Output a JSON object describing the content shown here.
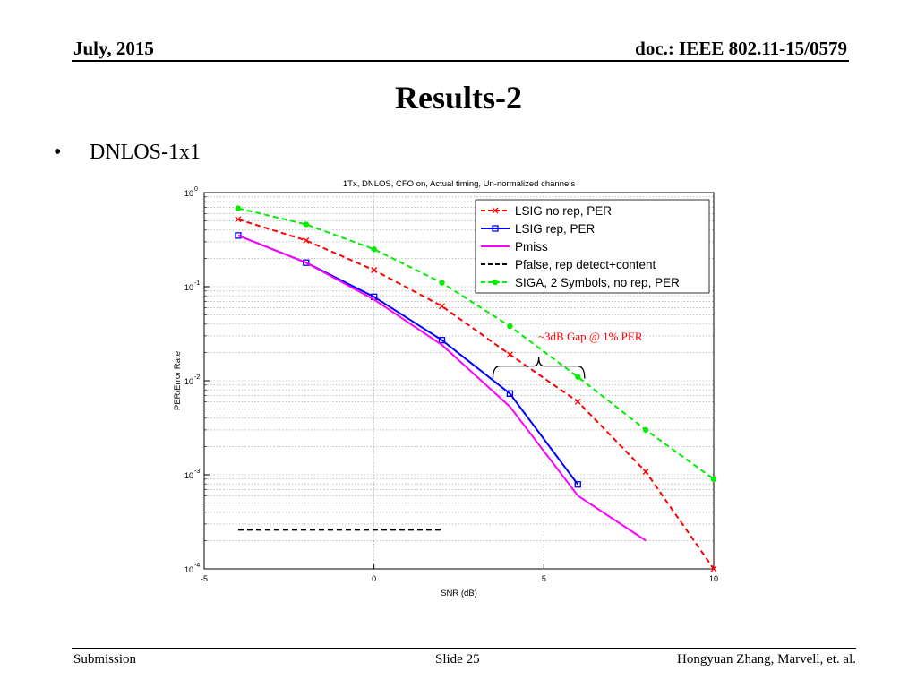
{
  "header": {
    "date": "July, 2015",
    "doc": "doc.: IEEE 802.11-15/0579"
  },
  "slide_title": "Results-2",
  "bullet": {
    "dot": "•",
    "text": "DNLOS-1x1"
  },
  "footer": {
    "left": "Submission",
    "center": "Slide 25",
    "right": "Hongyuan Zhang,  Marvell, et. al."
  },
  "chart_data": {
    "type": "line",
    "title": "1Tx, DNLOS, CFO on, Actual timing, Un-normalized channels",
    "xlabel": "SNR (dB)",
    "ylabel": "PER/Error Rate",
    "xlim": [
      -5,
      10
    ],
    "ylim": [
      0.0001,
      1
    ],
    "yscale": "log",
    "xticks": [
      -5,
      0,
      5,
      10
    ],
    "yticks": [
      {
        "value": 1,
        "label": "10",
        "exp": "0"
      },
      {
        "value": 0.1,
        "label": "10",
        "exp": "-1"
      },
      {
        "value": 0.01,
        "label": "10",
        "exp": "-2"
      },
      {
        "value": 0.001,
        "label": "10",
        "exp": "-3"
      },
      {
        "value": 0.0001,
        "label": "10",
        "exp": "-4"
      }
    ],
    "grid": true,
    "legend_position": "top-right",
    "series": [
      {
        "name": "LSIG no rep, PER",
        "color": "#ff0000",
        "dash": "dashed",
        "marker": "x",
        "x": [
          -4,
          -2,
          0,
          2,
          4,
          6,
          8,
          10
        ],
        "y": [
          0.52,
          0.31,
          0.15,
          0.062,
          0.019,
          0.006,
          0.00108,
          0.0001
        ]
      },
      {
        "name": "LSIG rep, PER",
        "color": "#0000ff",
        "dash": "solid",
        "marker": "square",
        "x": [
          -4,
          -2,
          0,
          2,
          4,
          6
        ],
        "y": [
          0.35,
          0.18,
          0.078,
          0.027,
          0.0073,
          0.00079
        ]
      },
      {
        "name": "Pmiss",
        "color": "#ff00ff",
        "dash": "solid",
        "marker": "none",
        "x": [
          -4,
          -2,
          0,
          2,
          4,
          6,
          8
        ],
        "y": [
          0.35,
          0.18,
          0.073,
          0.024,
          0.0053,
          0.0006,
          0.0002
        ]
      },
      {
        "name": "Pfalse, rep detect+content",
        "color": "#000000",
        "dash": "dashed",
        "marker": "none",
        "x": [
          -4,
          2
        ],
        "y": [
          0.00026,
          0.00026
        ]
      },
      {
        "name": "SIGA, 2 Symbols,  no rep, PER",
        "color": "#00ee00",
        "dash": "dashed",
        "marker": "circle",
        "x": [
          -4,
          -2,
          0,
          2,
          4,
          6,
          8,
          10
        ],
        "y": [
          0.68,
          0.46,
          0.25,
          0.11,
          0.038,
          0.011,
          0.003,
          0.0009
        ]
      }
    ],
    "annotation": {
      "text": "~3dB Gap  @ 1% PER",
      "color": "#ff0000",
      "brace_x": [
        3.5,
        6.2
      ],
      "y": 0.0115
    }
  }
}
